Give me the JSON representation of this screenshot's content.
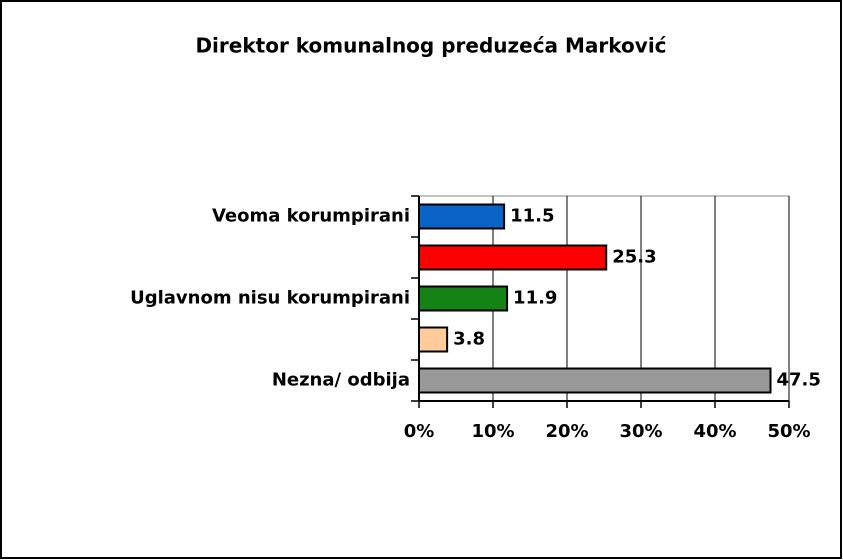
{
  "chart_data": {
    "type": "bar",
    "orientation": "horizontal",
    "title": "Direktor komunalnog preduzeća Marković",
    "categories": [
      "Veoma korumpirani",
      null,
      "Uglavnom nisu korumpirani",
      null,
      "Nezna/ odbija"
    ],
    "values": [
      11.5,
      25.3,
      11.9,
      3.8,
      47.5
    ],
    "colors": [
      "#0a64c8",
      "#ff0000",
      "#148214",
      "#ffcc99",
      "#999999"
    ],
    "xlim": [
      0,
      50
    ],
    "xticks": [
      {
        "value": 0,
        "label": "0%"
      },
      {
        "value": 10,
        "label": "10%"
      },
      {
        "value": 20,
        "label": "20%"
      },
      {
        "value": 30,
        "label": "30%"
      },
      {
        "value": 40,
        "label": "40%"
      },
      {
        "value": 50,
        "label": "50%"
      }
    ],
    "grid": true
  }
}
